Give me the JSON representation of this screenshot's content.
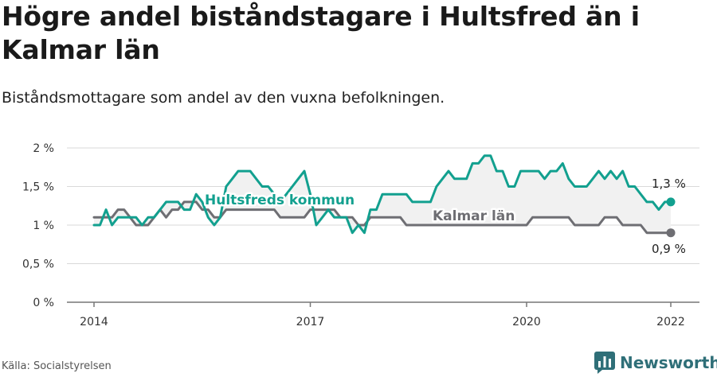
{
  "header": {
    "title": "Högre andel biståndstagare i Hultsfred än i Kalmar län",
    "subtitle": "Biståndsmottagare som andel av den vuxna befolkningen."
  },
  "footer": {
    "source": "Källa: Socialstyrelsen",
    "brand": "Newsworthy"
  },
  "colors": {
    "hultsfred": "#12a08f",
    "kalmar": "#6e6e73",
    "band": "#f1f1f1",
    "grid": "#d9d9d9",
    "axis": "#777777"
  },
  "chart_data": {
    "type": "line",
    "xlim": [
      2014,
      2022.25
    ],
    "ylim": [
      0,
      2
    ],
    "x_ticks": [
      {
        "value": 2014,
        "label": "2014"
      },
      {
        "value": 2017,
        "label": "2017"
      },
      {
        "value": 2020,
        "label": "2020"
      },
      {
        "value": 2022,
        "label": "2022"
      }
    ],
    "y_ticks": [
      {
        "value": 0,
        "label": "0 %"
      },
      {
        "value": 0.5,
        "label": "0,5 %"
      },
      {
        "value": 1,
        "label": "1 %"
      },
      {
        "value": 1.5,
        "label": "1,5 %"
      },
      {
        "value": 2,
        "label": "2 %"
      }
    ],
    "grid": true,
    "shaded_band_between_series": true,
    "series": [
      {
        "name": "Hultsfreds kommun",
        "key": "hultsfred",
        "end_label": "1,3 %",
        "x": [
          2014.0,
          2014.083,
          2014.167,
          2014.25,
          2014.333,
          2014.417,
          2014.5,
          2014.583,
          2014.667,
          2014.75,
          2014.833,
          2014.917,
          2015.0,
          2015.083,
          2015.167,
          2015.25,
          2015.333,
          2015.417,
          2015.5,
          2015.583,
          2015.667,
          2015.75,
          2015.833,
          2015.917,
          2016.0,
          2016.083,
          2016.167,
          2016.25,
          2016.333,
          2016.417,
          2016.5,
          2016.583,
          2016.667,
          2016.75,
          2016.833,
          2016.917,
          2017.0,
          2017.083,
          2017.167,
          2017.25,
          2017.333,
          2017.417,
          2017.5,
          2017.583,
          2017.667,
          2017.75,
          2017.833,
          2017.917,
          2018.0,
          2018.083,
          2018.167,
          2018.25,
          2018.333,
          2018.417,
          2018.5,
          2018.583,
          2018.667,
          2018.75,
          2018.833,
          2018.917,
          2019.0,
          2019.083,
          2019.167,
          2019.25,
          2019.333,
          2019.417,
          2019.5,
          2019.583,
          2019.667,
          2019.75,
          2019.833,
          2019.917,
          2020.0,
          2020.083,
          2020.167,
          2020.25,
          2020.333,
          2020.417,
          2020.5,
          2020.583,
          2020.667,
          2020.75,
          2020.833,
          2020.917,
          2021.0,
          2021.083,
          2021.167,
          2021.25,
          2021.333,
          2021.417,
          2021.5,
          2021.583,
          2021.667,
          2021.75,
          2021.833,
          2021.917,
          2022.0
        ],
        "values": [
          1.0,
          1.0,
          1.2,
          1.0,
          1.1,
          1.1,
          1.1,
          1.1,
          1.0,
          1.1,
          1.1,
          1.2,
          1.3,
          1.3,
          1.3,
          1.2,
          1.2,
          1.4,
          1.3,
          1.1,
          1.0,
          1.1,
          1.5,
          1.6,
          1.7,
          1.7,
          1.7,
          1.6,
          1.5,
          1.5,
          1.4,
          1.3,
          1.4,
          1.5,
          1.6,
          1.7,
          1.4,
          1.0,
          1.1,
          1.2,
          1.1,
          1.1,
          1.1,
          0.9,
          1.0,
          0.9,
          1.2,
          1.2,
          1.4,
          1.4,
          1.4,
          1.4,
          1.4,
          1.3,
          1.3,
          1.3,
          1.3,
          1.5,
          1.6,
          1.7,
          1.6,
          1.6,
          1.6,
          1.8,
          1.8,
          1.9,
          1.9,
          1.7,
          1.7,
          1.5,
          1.5,
          1.7,
          1.7,
          1.7,
          1.7,
          1.6,
          1.7,
          1.7,
          1.8,
          1.6,
          1.5,
          1.5,
          1.5,
          1.6,
          1.7,
          1.6,
          1.7,
          1.6,
          1.7,
          1.5,
          1.5,
          1.4,
          1.3,
          1.3,
          1.2,
          1.3,
          1.3
        ]
      },
      {
        "name": "Kalmar län",
        "key": "kalmar",
        "end_label": "0,9 %",
        "x": [
          2014.0,
          2014.083,
          2014.167,
          2014.25,
          2014.333,
          2014.417,
          2014.5,
          2014.583,
          2014.667,
          2014.75,
          2014.833,
          2014.917,
          2015.0,
          2015.083,
          2015.167,
          2015.25,
          2015.333,
          2015.417,
          2015.5,
          2015.583,
          2015.667,
          2015.75,
          2015.833,
          2015.917,
          2016.0,
          2016.083,
          2016.167,
          2016.25,
          2016.333,
          2016.417,
          2016.5,
          2016.583,
          2016.667,
          2016.75,
          2016.833,
          2016.917,
          2017.0,
          2017.083,
          2017.167,
          2017.25,
          2017.333,
          2017.417,
          2017.5,
          2017.583,
          2017.667,
          2017.75,
          2017.833,
          2017.917,
          2018.0,
          2018.083,
          2018.167,
          2018.25,
          2018.333,
          2018.417,
          2018.5,
          2018.583,
          2018.667,
          2018.75,
          2018.833,
          2018.917,
          2019.0,
          2019.083,
          2019.167,
          2019.25,
          2019.333,
          2019.417,
          2019.5,
          2019.583,
          2019.667,
          2019.75,
          2019.833,
          2019.917,
          2020.0,
          2020.083,
          2020.167,
          2020.25,
          2020.333,
          2020.417,
          2020.5,
          2020.583,
          2020.667,
          2020.75,
          2020.833,
          2020.917,
          2021.0,
          2021.083,
          2021.167,
          2021.25,
          2021.333,
          2021.417,
          2021.5,
          2021.583,
          2021.667,
          2021.75,
          2021.833,
          2021.917,
          2022.0
        ],
        "values": [
          1.1,
          1.1,
          1.1,
          1.1,
          1.2,
          1.2,
          1.1,
          1.0,
          1.0,
          1.0,
          1.1,
          1.2,
          1.1,
          1.2,
          1.2,
          1.3,
          1.3,
          1.3,
          1.2,
          1.2,
          1.1,
          1.1,
          1.2,
          1.2,
          1.2,
          1.2,
          1.2,
          1.2,
          1.2,
          1.2,
          1.2,
          1.1,
          1.1,
          1.1,
          1.1,
          1.1,
          1.2,
          1.2,
          1.2,
          1.2,
          1.2,
          1.1,
          1.1,
          1.1,
          1.0,
          1.0,
          1.1,
          1.1,
          1.1,
          1.1,
          1.1,
          1.1,
          1.0,
          1.0,
          1.0,
          1.0,
          1.0,
          1.0,
          1.0,
          1.0,
          1.0,
          1.0,
          1.0,
          1.0,
          1.0,
          1.0,
          1.0,
          1.0,
          1.0,
          1.0,
          1.0,
          1.0,
          1.0,
          1.1,
          1.1,
          1.1,
          1.1,
          1.1,
          1.1,
          1.1,
          1.0,
          1.0,
          1.0,
          1.0,
          1.0,
          1.1,
          1.1,
          1.1,
          1.0,
          1.0,
          1.0,
          1.0,
          0.9,
          0.9,
          0.9,
          0.9,
          0.9
        ]
      }
    ]
  }
}
